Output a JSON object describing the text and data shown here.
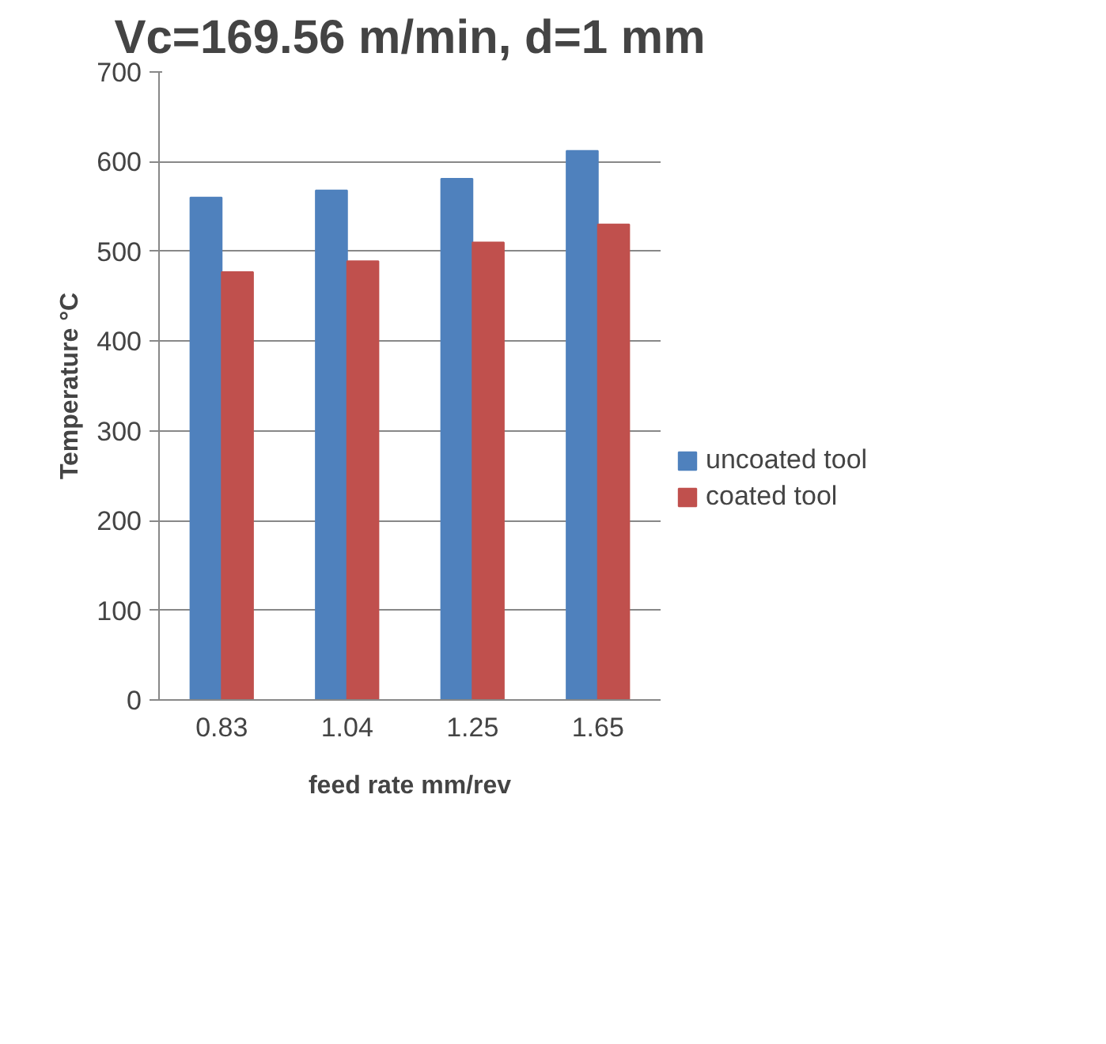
{
  "chart_data": {
    "type": "bar",
    "title": "Vc=169.56 m/min, d=1 mm",
    "xlabel": "feed rate mm/rev",
    "ylabel": "Temperature °C",
    "categories": [
      "0.83",
      "1.04",
      "1.25",
      "1.65"
    ],
    "series": [
      {
        "name": "uncoated tool",
        "color": "#4f81bd",
        "values": [
          560,
          568,
          581,
          612
        ]
      },
      {
        "name": "coated tool",
        "color": "#c0504d",
        "values": [
          477,
          489,
          510,
          530
        ]
      }
    ],
    "ylim": [
      0,
      700
    ],
    "yticks": [
      0,
      100,
      200,
      300,
      400,
      500,
      600,
      700
    ],
    "grid": "y",
    "legend": "right"
  }
}
